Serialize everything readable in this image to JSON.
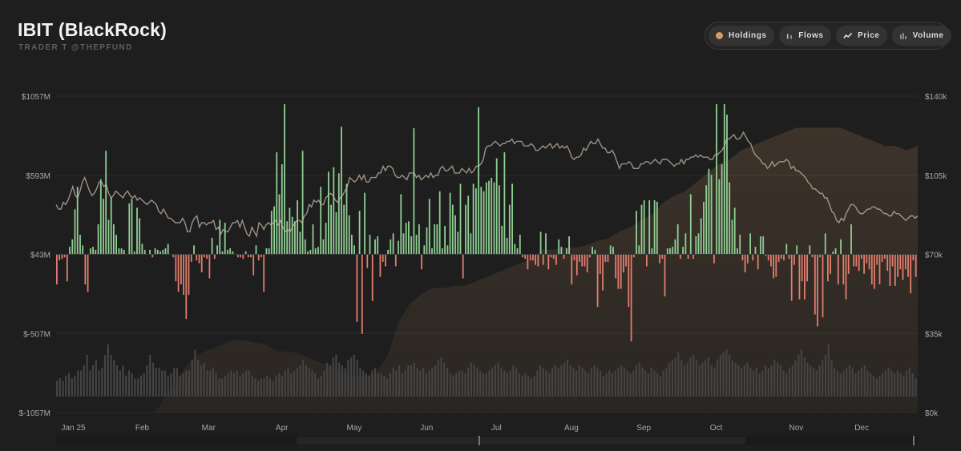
{
  "header": {
    "title": "IBIT (BlackRock)",
    "subtitle": "TRADER T @THEPFUND"
  },
  "toolbar": {
    "buttons": [
      {
        "label": "Holdings",
        "icon": "holdings-dot-icon",
        "color": "#d69a62"
      },
      {
        "label": "Flows",
        "icon": "flows-bars-icon"
      },
      {
        "label": "Price",
        "icon": "price-line-icon"
      },
      {
        "label": "Volume",
        "icon": "volume-bars-icon"
      }
    ]
  },
  "chart_data": {
    "type": "bar",
    "left_axis": {
      "ticks": [
        "$1057M",
        "$593M",
        "$43M",
        "$-507M",
        "$-1057M"
      ],
      "values": [
        1057,
        593,
        43,
        -507,
        -1057
      ],
      "range": [
        -1057,
        1057
      ]
    },
    "right_axis": {
      "ticks": [
        "$140k",
        "$105k",
        "$70k",
        "$35k",
        "$0k"
      ],
      "values": [
        140000,
        105000,
        70000,
        35000,
        0
      ],
      "range": [
        0,
        140000
      ]
    },
    "x_ticks": [
      "Jan 25",
      "Feb",
      "Mar",
      "Apr",
      "May",
      "Jun",
      "Jul",
      "Aug",
      "Sep",
      "Oct",
      "Nov",
      "Dec"
    ],
    "colors": {
      "inflow": "#8fcf93",
      "outflow": "#e27d6d",
      "price": "#c9b8a8",
      "holdings": "#d69a62",
      "volume": "#444444",
      "grid": "#2c2c2c"
    },
    "flows_M": [
      -200,
      -40,
      -30,
      -20,
      -180,
      50,
      100,
      300,
      450,
      130,
      60,
      -200,
      -250,
      40,
      50,
      30,
      200,
      500,
      370,
      690,
      230,
      380,
      200,
      130,
      40,
      40,
      30,
      0,
      340,
      370,
      20,
      310,
      240,
      70,
      30,
      0,
      30,
      -20,
      40,
      30,
      20,
      30,
      40,
      70,
      0,
      -20,
      -180,
      -250,
      -200,
      -270,
      -430,
      -270,
      -50,
      60,
      -40,
      -60,
      -120,
      -20,
      -30,
      -160,
      110,
      -30,
      60,
      230,
      20,
      210,
      30,
      40,
      20,
      0,
      -20,
      -20,
      -30,
      20,
      -20,
      -20,
      -140,
      60,
      -40,
      -20,
      -250,
      40,
      40,
      290,
      320,
      680,
      400,
      600,
      1000,
      220,
      310,
      250,
      220,
      360,
      150,
      690,
      100,
      20,
      30,
      200,
      40,
      50,
      450,
      100,
      210,
      550,
      330,
      580,
      280,
      540,
      850,
      330,
      470,
      260,
      130,
      60,
      -450,
      290,
      -530,
      410,
      -90,
      130,
      -310,
      100,
      120,
      -150,
      -50,
      -80,
      30,
      100,
      140,
      -80,
      90,
      400,
      140,
      210,
      220,
      120,
      840,
      130,
      200,
      -100,
      60,
      180,
      370,
      40,
      200,
      200,
      420,
      40,
      190,
      60,
      410,
      330,
      260,
      150,
      470,
      -160,
      330,
      390,
      140,
      470,
      440,
      980,
      450,
      420,
      480,
      490,
      510,
      480,
      640,
      460,
      190,
      680,
      110,
      330,
      470,
      70,
      40,
      130,
      -20,
      -30,
      -100,
      -40,
      -40,
      -70,
      -80,
      150,
      -70,
      140,
      -100,
      -20,
      -30,
      -70,
      100,
      50,
      -30,
      40,
      120,
      -200,
      -40,
      -140,
      -50,
      -80,
      -80,
      -120,
      -20,
      50,
      30,
      -350,
      -130,
      -240,
      -50,
      -50,
      60,
      50,
      -160,
      -230,
      -230,
      -120,
      -80,
      -350,
      -580,
      -20,
      290,
      60,
      330,
      360,
      -80,
      360,
      40,
      360,
      350,
      -60,
      -30,
      -280,
      40,
      40,
      50,
      100,
      200,
      -30,
      50,
      140,
      -30,
      400,
      -30,
      120,
      140,
      240,
      350,
      460,
      570,
      530,
      -60,
      1000,
      500,
      600,
      1000,
      930,
      480,
      230,
      310,
      40,
      130,
      -40,
      -120,
      -60,
      140,
      -40,
      50,
      -100,
      120,
      120,
      -10,
      -40,
      -80,
      -160,
      -150,
      -50,
      -30,
      -40,
      70,
      -30,
      -310,
      -70,
      60,
      -300,
      -180,
      -300,
      -180,
      60,
      -20,
      -400,
      -480,
      -20,
      -420,
      140,
      -180,
      -130,
      20,
      40,
      -200,
      100,
      -200,
      -300,
      -130,
      200,
      -80,
      -80,
      -110,
      -30,
      -130,
      -60,
      -100,
      -200,
      -230,
      -70,
      -200,
      -50,
      -30,
      -110,
      -210,
      -80,
      -210,
      -150,
      -100,
      -170,
      -100,
      -150,
      -260,
      -40,
      -150
    ],
    "price_k": [
      92,
      90,
      90,
      93,
      92,
      94,
      97,
      100,
      96,
      95,
      98,
      102,
      104,
      101,
      98,
      96,
      97,
      99,
      102,
      102,
      100,
      101,
      97,
      95,
      96,
      98,
      97,
      96,
      95,
      97,
      98,
      96,
      95,
      96,
      94,
      95,
      94,
      93,
      92,
      93,
      94,
      93,
      92,
      89,
      88,
      90,
      88,
      86,
      86,
      85,
      84,
      84,
      84,
      86,
      84,
      80,
      80,
      84,
      86,
      87,
      82,
      84,
      84,
      83,
      84,
      84,
      85,
      81,
      82,
      79,
      81,
      80,
      80,
      82,
      84,
      84,
      85,
      82,
      85,
      82,
      79,
      78,
      82,
      80,
      78,
      84,
      83,
      81,
      83,
      84,
      83,
      84,
      85,
      83,
      85,
      82,
      80,
      81,
      80,
      82,
      84,
      85,
      85,
      84,
      87,
      88,
      92,
      91,
      94,
      93,
      94,
      92,
      92,
      95,
      96,
      97,
      96,
      94,
      93,
      95,
      96,
      98,
      100,
      104,
      103,
      102,
      103,
      105,
      103,
      105,
      102,
      102,
      104,
      104,
      104,
      106,
      106,
      109,
      107,
      109,
      109,
      108,
      105,
      104,
      104,
      105,
      104,
      103,
      106,
      106,
      106,
      104,
      105,
      103,
      104,
      105,
      104,
      106,
      104,
      105,
      105,
      108,
      109,
      107,
      107,
      108,
      109,
      106,
      106,
      106,
      108,
      107,
      106,
      108,
      106,
      107,
      109,
      109,
      110,
      112,
      117,
      118,
      118,
      119,
      120,
      119,
      118,
      119,
      119,
      120,
      120,
      121,
      119,
      120,
      120,
      120,
      118,
      118,
      118,
      119,
      118,
      116,
      116,
      117,
      118,
      117,
      118,
      119,
      117,
      118,
      119,
      117,
      118,
      117,
      118,
      116,
      113,
      112,
      113,
      113,
      114,
      117,
      116,
      118,
      120,
      119,
      119,
      121,
      119,
      117,
      117,
      115,
      115,
      116,
      114,
      111,
      108,
      110,
      110,
      110,
      111,
      110,
      108,
      108,
      108,
      110,
      110,
      111,
      111,
      110,
      111,
      112,
      111,
      110,
      112,
      112,
      112,
      111,
      110,
      109,
      110,
      110,
      112,
      110,
      112,
      112,
      113,
      113,
      114,
      113,
      114,
      113,
      113,
      113,
      112,
      112,
      114,
      114,
      115,
      116,
      118,
      121,
      121,
      122,
      123,
      121,
      121,
      122,
      124,
      122,
      120,
      119,
      116,
      114,
      113,
      112,
      110,
      110,
      108,
      109,
      111,
      109,
      110,
      111,
      111,
      111,
      112,
      111,
      108,
      109,
      107,
      107,
      106,
      105,
      104,
      102,
      101,
      99,
      99,
      98,
      97,
      97,
      95,
      95,
      92,
      89,
      88,
      85,
      84,
      86,
      85,
      88,
      90,
      92,
      92,
      91,
      89,
      88,
      88,
      89,
      90,
      90,
      91,
      91,
      90,
      90,
      89,
      88,
      88,
      87,
      87,
      89,
      88,
      88,
      87,
      86,
      85,
      86,
      87,
      87,
      86,
      87
    ],
    "holdings_shape_k": [
      0,
      0,
      0,
      0,
      0,
      0,
      0,
      0,
      0,
      0,
      8,
      15,
      22,
      26,
      28,
      30,
      32,
      32,
      31,
      30,
      27,
      27,
      26,
      24,
      22,
      20,
      18,
      16,
      16,
      18,
      25,
      40,
      48,
      52,
      55,
      55,
      56,
      56,
      58,
      60,
      62,
      64,
      66,
      68,
      72,
      72,
      73,
      73,
      74,
      76,
      77,
      80,
      82,
      85,
      88,
      93,
      96,
      98,
      102,
      106,
      110,
      112,
      116,
      118,
      120,
      122,
      124,
      126,
      126,
      126,
      126,
      126,
      124,
      122,
      120,
      118,
      118,
      116,
      118
    ],
    "volume_rel": [
      0.3,
      0.35,
      0.3,
      0.4,
      0.45,
      0.35,
      0.4,
      0.5,
      0.5,
      0.6,
      0.8,
      0.5,
      0.6,
      0.7,
      0.5,
      0.55,
      0.8,
      1,
      0.8,
      0.7,
      0.6,
      0.5,
      0.6,
      0.4,
      0.5,
      0.45,
      0.35,
      0.35,
      0.4,
      0.45,
      0.6,
      0.8,
      0.65,
      0.55,
      0.55,
      0.5,
      0.5,
      0.4,
      0.45,
      0.55,
      0.55,
      0.4,
      0.45,
      0.5,
      0.5,
      0.7,
      0.9,
      0.7,
      0.6,
      0.65,
      0.5,
      0.5,
      0.55,
      0.45,
      0.35,
      0.35,
      0.4,
      0.45,
      0.5,
      0.45,
      0.5,
      0.4,
      0.45,
      0.5,
      0.5,
      0.4,
      0.35,
      0.3,
      0.35,
      0.35,
      0.4,
      0.35,
      0.3,
      0.4,
      0.45,
      0.4,
      0.5,
      0.55,
      0.45,
      0.5,
      0.55,
      0.6,
      0.7,
      0.6,
      0.55,
      0.5,
      0.45,
      0.35,
      0.4,
      0.5,
      0.65,
      0.6,
      0.75,
      0.8,
      0.65,
      0.6,
      0.55,
      0.7,
      0.75,
      0.8,
      0.7,
      0.55,
      0.5,
      0.45,
      0.4,
      0.5,
      0.55,
      0.45,
      0.45,
      0.4,
      0.35,
      0.45,
      0.55,
      0.5,
      0.6,
      0.45,
      0.5,
      0.6,
      0.6,
      0.65,
      0.55,
      0.5,
      0.55,
      0.45,
      0.5,
      0.55,
      0.6,
      0.7,
      0.75,
      0.65,
      0.55,
      0.45,
      0.4,
      0.45,
      0.5,
      0.5,
      0.45,
      0.55,
      0.65,
      0.6,
      0.55,
      0.5,
      0.45,
      0.45,
      0.5,
      0.55,
      0.6,
      0.65,
      0.55,
      0.5,
      0.45,
      0.5,
      0.6,
      0.55,
      0.45,
      0.4,
      0.45,
      0.4,
      0.35,
      0.4,
      0.5,
      0.6,
      0.55,
      0.5,
      0.45,
      0.55,
      0.6,
      0.55,
      0.6,
      0.65,
      0.7,
      0.6,
      0.55,
      0.5,
      0.6,
      0.55,
      0.5,
      0.45,
      0.55,
      0.6,
      0.55,
      0.5,
      0.4,
      0.45,
      0.5,
      0.45,
      0.5,
      0.55,
      0.6,
      0.55,
      0.5,
      0.45,
      0.5,
      0.6,
      0.65,
      0.55,
      0.5,
      0.45,
      0.55,
      0.5,
      0.45,
      0.4,
      0.5,
      0.55,
      0.65,
      0.7,
      0.75,
      0.85,
      0.7,
      0.6,
      0.65,
      0.75,
      0.8,
      0.7,
      0.6,
      0.65,
      0.7,
      0.75,
      0.6,
      0.55,
      0.7,
      0.8,
      0.85,
      0.9,
      0.8,
      0.7,
      0.65,
      0.6,
      0.55,
      0.6,
      0.65,
      0.55,
      0.5,
      0.55,
      0.45,
      0.5,
      0.6,
      0.55,
      0.6,
      0.7,
      0.65,
      0.6,
      0.5,
      0.45,
      0.55,
      0.6,
      0.7,
      0.8,
      0.9,
      0.75,
      0.65,
      0.6,
      0.55,
      0.5,
      0.6,
      0.7,
      0.8,
      1,
      0.7,
      0.55,
      0.5,
      0.45,
      0.5,
      0.55,
      0.6,
      0.55,
      0.45,
      0.5,
      0.55,
      0.6,
      0.5,
      0.45,
      0.4,
      0.35,
      0.4,
      0.45,
      0.5,
      0.55,
      0.5,
      0.45,
      0.5,
      0.45,
      0.4,
      0.5,
      0.55,
      0.45,
      0.35
    ]
  },
  "scrollbar": {
    "range_start": 0,
    "range_end": 1
  }
}
